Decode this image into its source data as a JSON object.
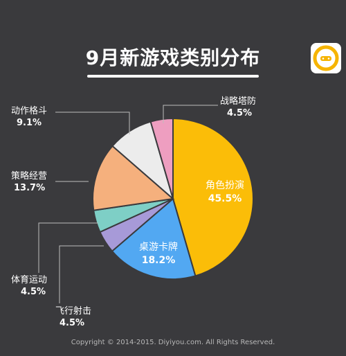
{
  "title": "9月新游戏类别分布",
  "footer": "Copyright © 2014-2015. Diyiyou.com. All Rights Reserved.",
  "colors": {
    "background": "#3a3a3d",
    "title_text": "#ffffff",
    "logo_accent": "#f6b400"
  },
  "chart_data": {
    "type": "pie",
    "title": "9月新游戏类别分布",
    "unit": "%",
    "slices": [
      {
        "label": "角色扮演",
        "value": 45.5,
        "display": "45.5%",
        "color": "#fbbd08"
      },
      {
        "label": "桌游卡牌",
        "value": 18.2,
        "display": "18.2%",
        "color": "#52a8f2"
      },
      {
        "label": "飞行射击",
        "value": 4.5,
        "display": "4.5%",
        "color": "#a79ad8"
      },
      {
        "label": "体育运动",
        "value": 4.5,
        "display": "4.5%",
        "color": "#7ecfc6"
      },
      {
        "label": "策略经营",
        "value": 13.7,
        "display": "13.7%",
        "color": "#f5b07d"
      },
      {
        "label": "动作格斗",
        "value": 9.1,
        "display": "9.1%",
        "color": "#ececec"
      },
      {
        "label": "战略塔防",
        "value": 4.5,
        "display": "4.5%",
        "color": "#ee9ec0"
      }
    ]
  }
}
